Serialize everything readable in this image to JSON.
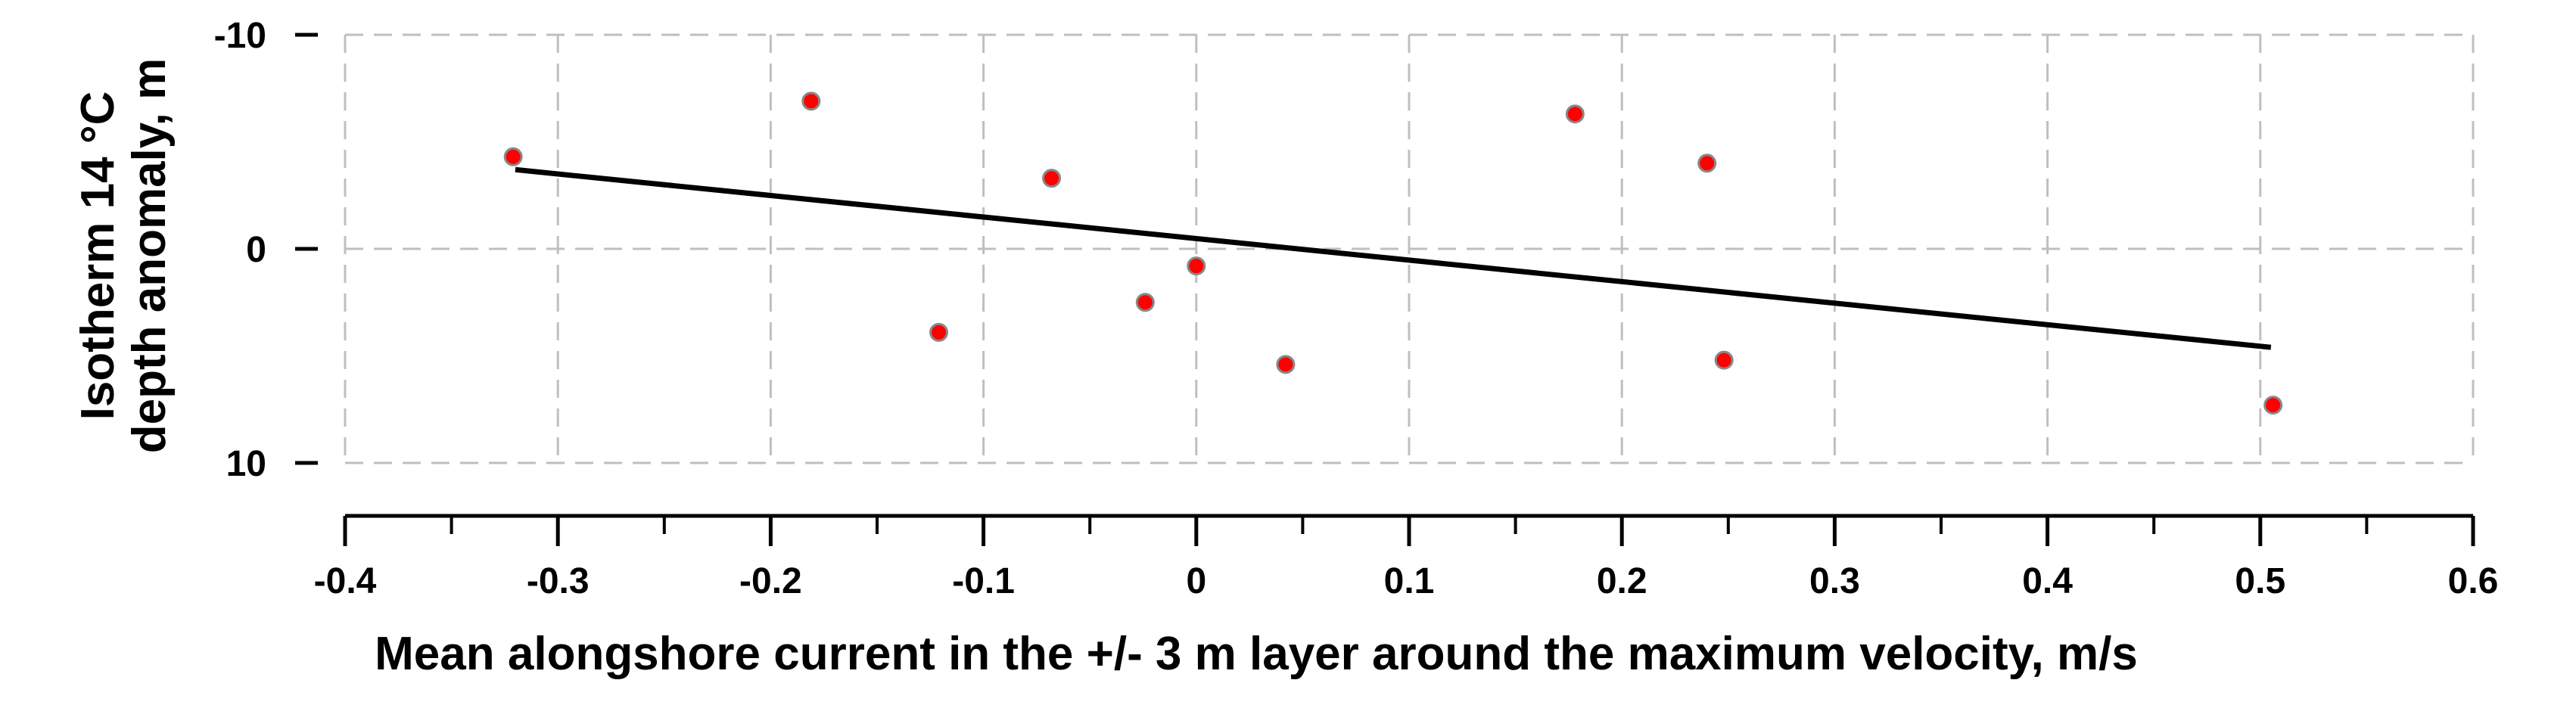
{
  "chart_data": {
    "type": "scatter",
    "xlabel": "Mean alongshore current in the +/- 3 m layer around the maximum velocity, m/s",
    "ylabel_lines": [
      "Isotherm 14 °C",
      "depth anomaly, m"
    ],
    "xlim": [
      -0.4,
      0.6
    ],
    "ylim": [
      10,
      -10
    ],
    "y_inverted": true,
    "grid": true,
    "x_ticks": [
      -0.4,
      -0.3,
      -0.2,
      -0.1,
      0,
      0.1,
      0.2,
      0.3,
      0.4,
      0.5,
      0.6
    ],
    "x_tick_labels": [
      "-0.4",
      "-0.3",
      "-0.2",
      "-0.1",
      "0",
      "0.1",
      "0.2",
      "0.3",
      "0.4",
      "0.5",
      "0.6"
    ],
    "y_ticks": [
      -10,
      0,
      10
    ],
    "y_tick_labels": [
      "-10",
      "0",
      "10"
    ],
    "points": [
      {
        "x": -0.321,
        "y": -4.3
      },
      {
        "x": -0.181,
        "y": -6.9
      },
      {
        "x": -0.121,
        "y": 3.9
      },
      {
        "x": -0.068,
        "y": -3.3
      },
      {
        "x": -0.024,
        "y": 2.5
      },
      {
        "x": 0.0,
        "y": 0.8
      },
      {
        "x": 0.042,
        "y": 5.4
      },
      {
        "x": 0.178,
        "y": -6.3
      },
      {
        "x": 0.24,
        "y": -4.0
      },
      {
        "x": 0.248,
        "y": 5.2
      },
      {
        "x": 0.506,
        "y": 7.3
      }
    ],
    "trend_line": {
      "x": [
        -0.32,
        0.505
      ],
      "y": [
        -3.7,
        4.6
      ]
    },
    "colors": {
      "point_fill": "#ff0000",
      "point_stroke": "#888888",
      "line": "#000000",
      "grid": "#bfbfbf"
    }
  }
}
